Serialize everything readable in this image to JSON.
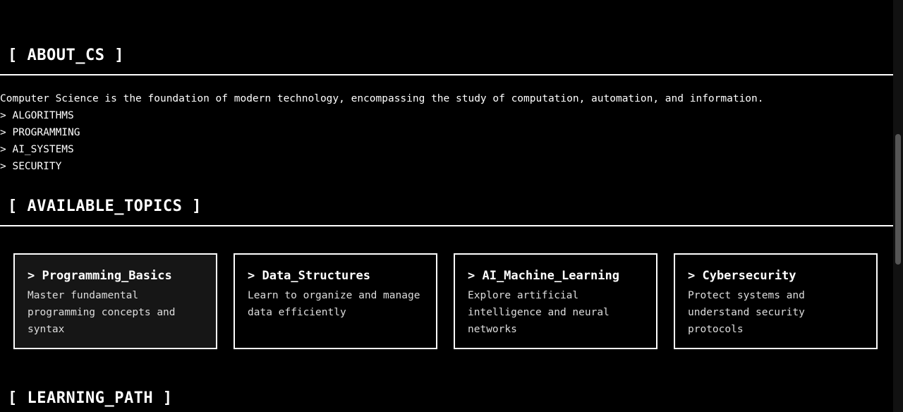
{
  "about": {
    "heading": "[ ABOUT_CS ]",
    "text": "Computer Science is the foundation of modern technology, encompassing the study of computation, automation, and information.",
    "items": [
      "> ALGORITHMS",
      "> PROGRAMMING",
      "> AI_SYSTEMS",
      "> SECURITY"
    ]
  },
  "topics": {
    "heading": "[ AVAILABLE_TOPICS ]",
    "cards": [
      {
        "title": "> Programming_Basics",
        "description": "Master fundamental programming concepts and syntax"
      },
      {
        "title": "> Data_Structures",
        "description": "Learn to organize and manage data efficiently"
      },
      {
        "title": "> AI_Machine_Learning",
        "description": "Explore artificial intelligence and neural networks"
      },
      {
        "title": "> Cybersecurity",
        "description": "Protect systems and understand security protocols"
      }
    ]
  },
  "learning_path": {
    "heading": "[ LEARNING_PATH ]"
  }
}
